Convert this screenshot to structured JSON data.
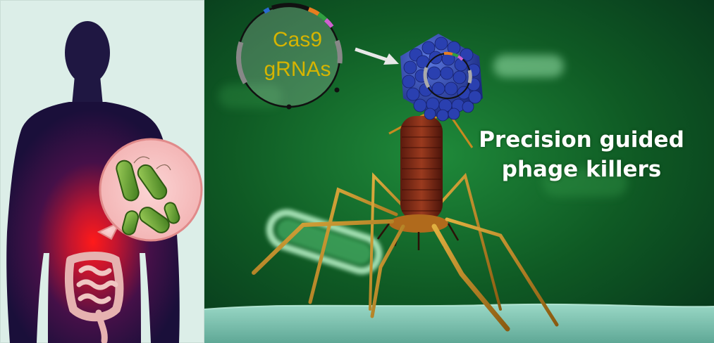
{
  "plasmid": {
    "line1": "Cas9",
    "line2": "gRNAs",
    "label_color": "#d6b400"
  },
  "headline": {
    "line1": "Precision guided",
    "line2": "phage killers"
  },
  "icons": [
    "human-silhouette-icon",
    "intestine-icon",
    "bacteria-icon",
    "plasmid-icon",
    "bacteriophage-icon",
    "arrow-icon"
  ]
}
